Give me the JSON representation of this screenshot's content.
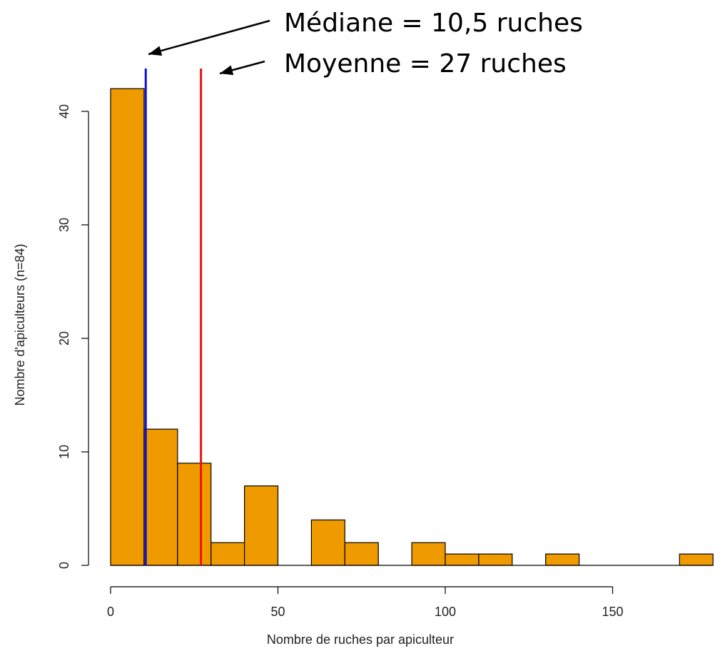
{
  "chart_data": {
    "type": "bar",
    "subtype": "histogram",
    "title": "",
    "xlabel": "Nombre de ruches par apiculteur",
    "ylabel": "Nombre d'apiculteurs (n=84)",
    "bin_width": 10,
    "bins": [
      {
        "start": 0,
        "end": 10,
        "count": 42
      },
      {
        "start": 10,
        "end": 20,
        "count": 12
      },
      {
        "start": 20,
        "end": 30,
        "count": 9
      },
      {
        "start": 30,
        "end": 40,
        "count": 2
      },
      {
        "start": 40,
        "end": 50,
        "count": 7
      },
      {
        "start": 50,
        "end": 60,
        "count": 0
      },
      {
        "start": 60,
        "end": 70,
        "count": 4
      },
      {
        "start": 70,
        "end": 80,
        "count": 2
      },
      {
        "start": 80,
        "end": 90,
        "count": 0
      },
      {
        "start": 90,
        "end": 100,
        "count": 2
      },
      {
        "start": 100,
        "end": 110,
        "count": 1
      },
      {
        "start": 110,
        "end": 120,
        "count": 1
      },
      {
        "start": 120,
        "end": 130,
        "count": 0
      },
      {
        "start": 130,
        "end": 140,
        "count": 1
      },
      {
        "start": 140,
        "end": 150,
        "count": 0
      },
      {
        "start": 150,
        "end": 160,
        "count": 0
      },
      {
        "start": 160,
        "end": 170,
        "count": 0
      },
      {
        "start": 170,
        "end": 180,
        "count": 1
      }
    ],
    "xlim": [
      0,
      180
    ],
    "ylim": [
      0,
      44
    ],
    "x_ticks": [
      0,
      50,
      100,
      150
    ],
    "x_tick_labels": [
      "0",
      "50",
      "100",
      "150"
    ],
    "y_ticks": [
      0,
      10,
      20,
      30,
      40
    ],
    "y_tick_labels": [
      "0",
      "10",
      "20",
      "30",
      "40"
    ],
    "bar_color": "#ef9b00",
    "grid": false,
    "reference_lines": [
      {
        "name": "median",
        "value": 10.5,
        "color": "#1010e0"
      },
      {
        "name": "mean",
        "value": 27,
        "color": "#ee1111"
      }
    ],
    "annotations": [
      {
        "text": "Médiane = 10,5 ruches",
        "points_to": "median"
      },
      {
        "text": "Moyenne = 27 ruches",
        "points_to": "mean"
      }
    ]
  }
}
